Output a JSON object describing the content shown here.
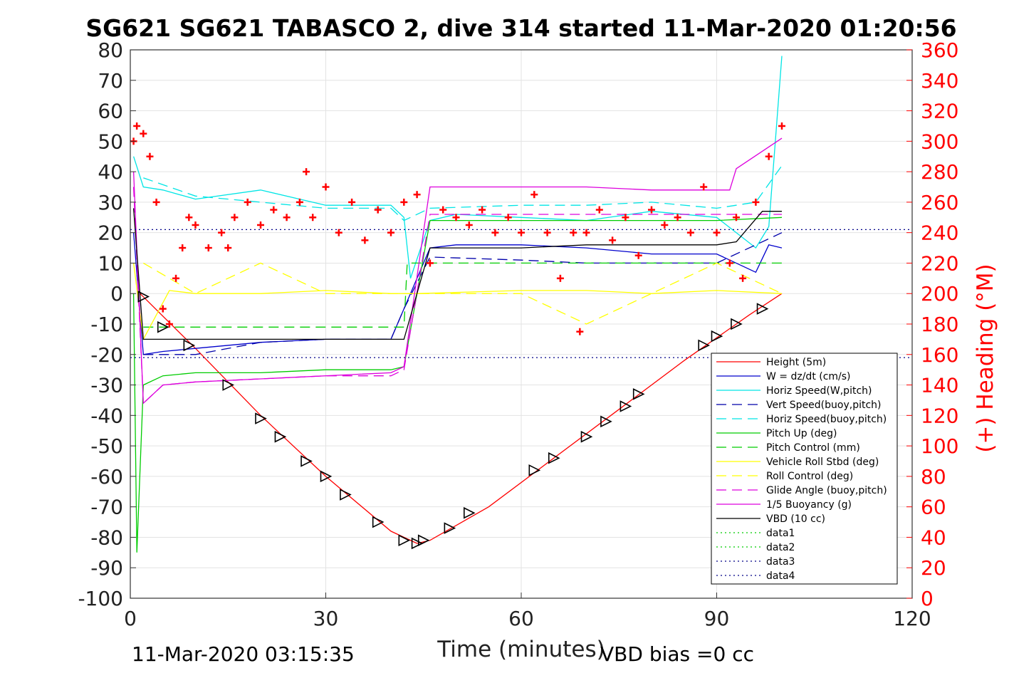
{
  "chart_data": {
    "type": "line",
    "title": "SG621 SG621 TABASCO 2, dive 314 started 11-Mar-2020 01:20:56",
    "xlabel": "Time (minutes)",
    "ylabel_right": "(+) Heading (°M)",
    "xlim": [
      0,
      120
    ],
    "ylim_left": [
      -100,
      80
    ],
    "ylim_right": [
      0,
      360
    ],
    "xticks": [
      "0",
      "30",
      "60",
      "90",
      "120"
    ],
    "yticks_left": [
      "80",
      "70",
      "60",
      "50",
      "40",
      "30",
      "20",
      "10",
      "0",
      "-10",
      "-20",
      "-30",
      "-40",
      "-50",
      "-60",
      "-70",
      "-80",
      "-90",
      "-100"
    ],
    "yticks_right": [
      "360",
      "340",
      "320",
      "300",
      "280",
      "260",
      "240",
      "220",
      "200",
      "180",
      "160",
      "140",
      "120",
      "100",
      "80",
      "60",
      "40",
      "20",
      "0"
    ],
    "grid": true,
    "legend_position": "bottom-right",
    "footer_left": "11-Mar-2020 03:15:35",
    "footer_right": "VBD bias =0 cc",
    "series": [
      {
        "name": "Height (5m)",
        "color": "#ff0000",
        "dash": "solid",
        "x": [
          1.5,
          10,
          20,
          30,
          40,
          44,
          46,
          55,
          65,
          75,
          85,
          95,
          100
        ],
        "y": [
          0,
          -18,
          -40,
          -60,
          -78,
          -82,
          -81,
          -70,
          -54,
          -38,
          -22,
          -7,
          0
        ]
      },
      {
        "name": "W = dz/dt (cm/s)",
        "color": "#0000cc",
        "dash": "solid",
        "x": [
          0.5,
          2,
          5,
          10,
          20,
          30,
          40,
          42,
          46,
          50,
          60,
          70,
          80,
          90,
          96,
          98,
          100
        ],
        "y": [
          20,
          -20,
          -19,
          -18,
          -16,
          -15,
          -15,
          -5,
          15,
          16,
          16,
          15,
          13,
          13,
          7,
          16,
          15
        ]
      },
      {
        "name": "Horiz Speed(W,pitch)",
        "color": "#00e5e5",
        "dash": "solid",
        "x": [
          0.5,
          2,
          5,
          10,
          20,
          30,
          40,
          42,
          43,
          46,
          50,
          60,
          70,
          80,
          90,
          96,
          98,
          100
        ],
        "y": [
          45,
          35,
          34,
          31,
          34,
          29,
          29,
          25,
          5,
          24,
          26,
          25,
          24,
          27,
          25,
          15,
          22,
          78
        ]
      },
      {
        "name": "Vert Speed(buoy,pitch)",
        "color": "#0000aa",
        "dash": "dashed",
        "x": [
          2,
          10,
          20,
          30,
          40,
          42,
          46,
          60,
          70,
          80,
          90,
          100
        ],
        "y": [
          -20,
          -20,
          -16,
          -15,
          -15,
          -5,
          12,
          11,
          10,
          10,
          10,
          20
        ]
      },
      {
        "name": "Horiz Speed(buoy,pitch)",
        "color": "#00e5e5",
        "dash": "dashed",
        "x": [
          2,
          10,
          20,
          30,
          40,
          42,
          46,
          60,
          70,
          80,
          90,
          96,
          100
        ],
        "y": [
          38,
          32,
          30,
          28,
          28,
          24,
          28,
          29,
          29,
          30,
          28,
          30,
          42
        ]
      },
      {
        "name": "Pitch Up (deg)",
        "color": "#00cc00",
        "dash": "solid",
        "x": [
          0.5,
          1,
          2,
          5,
          10,
          20,
          30,
          40,
          42,
          46,
          60,
          70,
          80,
          90,
          100
        ],
        "y": [
          0,
          -85,
          -30,
          -27,
          -26,
          -26,
          -25,
          -25,
          -24,
          24,
          24,
          24,
          24,
          24,
          25
        ]
      },
      {
        "name": "Pitch Control (mm)",
        "color": "#00cc00",
        "dash": "dashed",
        "x": [
          2,
          42,
          42.5,
          100
        ],
        "y": [
          -11,
          -11,
          10,
          10
        ]
      },
      {
        "name": "Vehicle Roll Stbd (deg)",
        "color": "#ffff00",
        "dash": "solid",
        "x": [
          0.5,
          2,
          6,
          10,
          20,
          30,
          40,
          44,
          60,
          70,
          80,
          90,
          100
        ],
        "y": [
          10,
          -15,
          1,
          0,
          0,
          1,
          0,
          0,
          1,
          1,
          0,
          1,
          0
        ]
      },
      {
        "name": "Roll Control (deg)",
        "color": "#ffff00",
        "dash": "dashed",
        "x": [
          2,
          10,
          20,
          30,
          40,
          46,
          60,
          70,
          80,
          90,
          100
        ],
        "y": [
          10,
          0,
          10,
          0,
          0,
          0,
          0,
          -10,
          0,
          10,
          0
        ]
      },
      {
        "name": "Glide Angle (buoy,pitch)",
        "color": "#dd00dd",
        "dash": "dashed",
        "x": [
          0.5,
          2,
          5,
          10,
          20,
          30,
          40,
          42,
          46,
          60,
          70,
          80,
          90,
          100
        ],
        "y": [
          35,
          -36,
          -30,
          -29,
          -28,
          -27,
          -27,
          -25,
          26,
          26,
          26,
          26,
          26,
          26
        ]
      },
      {
        "name": "1/5 Buoyancy (g)",
        "color": "#dd00dd",
        "dash": "solid",
        "x": [
          0.5,
          2,
          5,
          10,
          20,
          40,
          42,
          46,
          60,
          70,
          80,
          92,
          93,
          100
        ],
        "y": [
          40,
          -36,
          -30,
          -29,
          -28,
          -26,
          -24,
          35,
          35,
          35,
          34,
          34,
          41,
          51
        ]
      },
      {
        "name": "VBD (10 cc)",
        "color": "#000000",
        "dash": "solid",
        "x": [
          0.5,
          2,
          42,
          44,
          46,
          60,
          70,
          80,
          90,
          93,
          97,
          100
        ],
        "y": [
          28,
          -15,
          -15,
          0,
          15,
          15,
          16,
          16,
          16,
          17,
          27,
          27
        ]
      },
      {
        "name": "data1",
        "color": "#00cc00",
        "dash": "dotted",
        "x": [],
        "y": []
      },
      {
        "name": "data2",
        "color": "#00cc00",
        "dash": "dotted",
        "x": [],
        "y": []
      },
      {
        "name": "data3",
        "color": "#000088",
        "dash": "dotted",
        "x": [
          0,
          120
        ],
        "y": [
          21,
          21
        ]
      },
      {
        "name": "data4",
        "color": "#000088",
        "dash": "dotted",
        "x": [
          0,
          120
        ],
        "y": [
          -21,
          -21
        ]
      }
    ],
    "heading": {
      "color": "#ff0000",
      "marker": "+",
      "axis": "right",
      "x": [
        0.5,
        1,
        2,
        3,
        4,
        5,
        6,
        7,
        8,
        9,
        10,
        12,
        14,
        15,
        16,
        18,
        20,
        22,
        24,
        26,
        27,
        28,
        30,
        32,
        34,
        36,
        38,
        40,
        42,
        44,
        46,
        48,
        50,
        52,
        54,
        56,
        58,
        60,
        62,
        64,
        66,
        68,
        69,
        70,
        72,
        74,
        76,
        78,
        80,
        82,
        84,
        86,
        88,
        90,
        92,
        93,
        94,
        96,
        98,
        100
      ],
      "y": [
        300,
        310,
        305,
        290,
        260,
        190,
        180,
        210,
        230,
        250,
        245,
        230,
        240,
        230,
        250,
        260,
        245,
        255,
        250,
        260,
        280,
        250,
        270,
        240,
        260,
        235,
        255,
        240,
        260,
        265,
        220,
        255,
        250,
        245,
        255,
        240,
        250,
        240,
        265,
        240,
        210,
        240,
        175,
        240,
        255,
        235,
        250,
        225,
        255,
        245,
        250,
        240,
        270,
        240,
        220,
        250,
        210,
        260,
        290,
        310
      ]
    },
    "markers": {
      "type": "triangle",
      "x": [
        2,
        5,
        9,
        15,
        20,
        23,
        27,
        30,
        33,
        38,
        42,
        44,
        45,
        49,
        52,
        62,
        65,
        70,
        73,
        76,
        78,
        88,
        90,
        93,
        97
      ],
      "y": [
        -1,
        -11,
        -17,
        -30,
        -41,
        -47,
        -55,
        -60,
        -66,
        -75,
        -81,
        -82,
        -81,
        -77,
        -72,
        -58,
        -54,
        -47,
        -42,
        -37,
        -33,
        -17,
        -14,
        -10,
        -5
      ]
    }
  },
  "legend": [
    {
      "label": "Height (5m)",
      "color": "#ff0000",
      "dash": "solid"
    },
    {
      "label": "W = dz/dt (cm/s)",
      "color": "#0000cc",
      "dash": "solid"
    },
    {
      "label": "Horiz Speed(W,pitch)",
      "color": "#00e5e5",
      "dash": "solid"
    },
    {
      "label": "Vert Speed(buoy,pitch)",
      "color": "#0000aa",
      "dash": "dashed"
    },
    {
      "label": "Horiz Speed(buoy,pitch)",
      "color": "#00e5e5",
      "dash": "dashed"
    },
    {
      "label": "Pitch Up (deg)",
      "color": "#00cc00",
      "dash": "solid"
    },
    {
      "label": "Pitch Control (mm)",
      "color": "#00cc00",
      "dash": "dashed"
    },
    {
      "label": "Vehicle Roll Stbd (deg)",
      "color": "#ffff00",
      "dash": "solid"
    },
    {
      "label": "Roll Control (deg)",
      "color": "#ffff00",
      "dash": "dashed"
    },
    {
      "label": "Glide Angle (buoy,pitch)",
      "color": "#dd00dd",
      "dash": "dashed"
    },
    {
      "label": "1/5 Buoyancy (g)",
      "color": "#dd00dd",
      "dash": "solid"
    },
    {
      "label": "VBD (10 cc)",
      "color": "#000000",
      "dash": "solid"
    },
    {
      "label": "data1",
      "color": "#00cc00",
      "dash": "dotted"
    },
    {
      "label": "data2",
      "color": "#00cc00",
      "dash": "dotted"
    },
    {
      "label": "data3",
      "color": "#000088",
      "dash": "dotted"
    },
    {
      "label": "data4",
      "color": "#000088",
      "dash": "dotted"
    }
  ]
}
